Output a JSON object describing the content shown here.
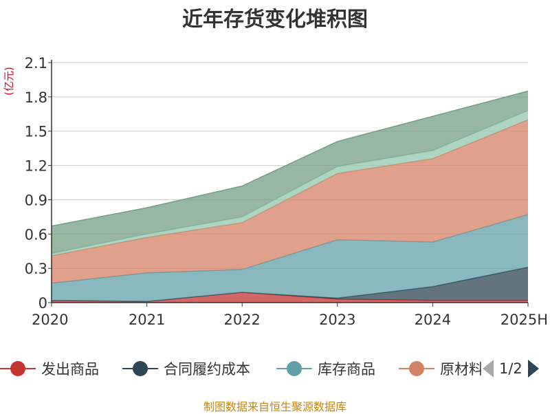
{
  "chart_data": {
    "type": "area",
    "stacked": true,
    "title": "近年存货变化堆积图",
    "ylabel": "(亿元)",
    "ylim": [
      0,
      2.1
    ],
    "yticks": [
      0,
      0.3,
      0.6,
      0.9,
      1.2,
      1.5,
      1.8,
      2.1
    ],
    "ytick_labels": [
      "0",
      "0.3",
      "0.6",
      "0.9",
      "1.2",
      "1.5",
      "1.8",
      "2.1"
    ],
    "categories": [
      "2020",
      "2021",
      "2022",
      "2023",
      "2024",
      "2025H"
    ],
    "grid": true,
    "legend_position": "bottom",
    "series": [
      {
        "name": "发出商品",
        "color": "#c23531",
        "values": [
          0.02,
          0.01,
          0.09,
          0.03,
          0.02,
          0.02
        ]
      },
      {
        "name": "合同履约成本",
        "color": "#2f4554",
        "values": [
          0.0,
          0.0,
          0.0,
          0.01,
          0.12,
          0.29
        ]
      },
      {
        "name": "库存商品",
        "color": "#61a0a8",
        "values": [
          0.15,
          0.25,
          0.2,
          0.51,
          0.39,
          0.46
        ]
      },
      {
        "name": "原材料",
        "color": "#d48265",
        "values": [
          0.24,
          0.31,
          0.41,
          0.58,
          0.73,
          0.83
        ]
      },
      {
        "name": "",
        "color": "#91c7ae",
        "values": [
          0.02,
          0.03,
          0.05,
          0.06,
          0.07,
          0.08
        ]
      },
      {
        "name": "",
        "color": "#749f83",
        "values": [
          0.24,
          0.23,
          0.27,
          0.22,
          0.3,
          0.17
        ]
      }
    ]
  },
  "legend": {
    "items": [
      {
        "label": "发出商品",
        "color": "#c23531"
      },
      {
        "label": "合同履约成本",
        "color": "#2f4554"
      },
      {
        "label": "库存商品",
        "color": "#61a0a8"
      },
      {
        "label": "原材料",
        "color": "#d48265"
      }
    ],
    "page_label": "1/2",
    "arrow_prev_color": "#aaaaaa",
    "arrow_next_color": "#2f4554"
  },
  "source_note": "制图数据来自恒生聚源数据库"
}
